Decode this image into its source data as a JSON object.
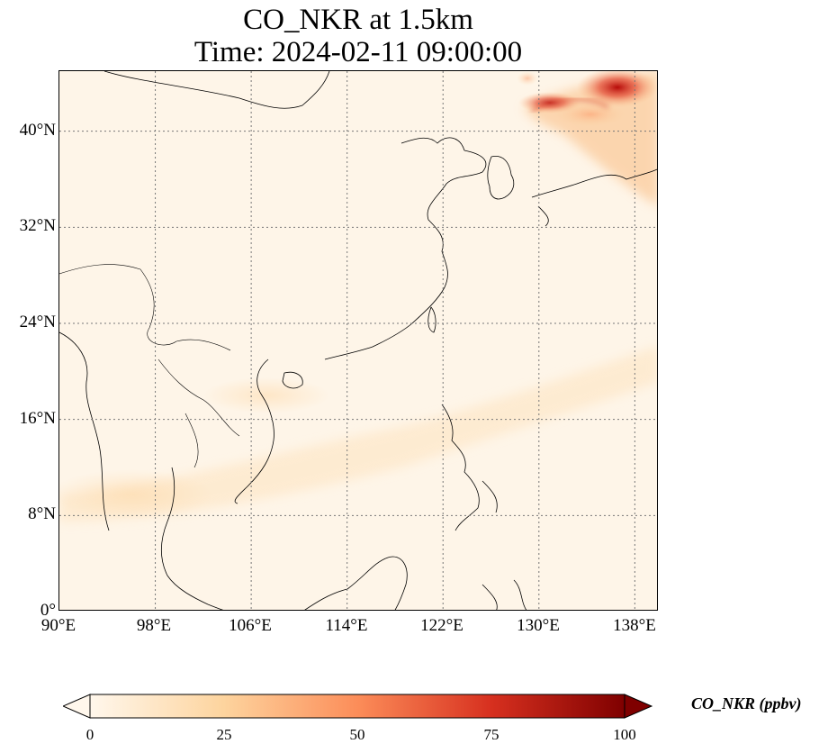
{
  "title": {
    "line1": "CO_NKR at 1.5km",
    "line2": "Time: 2024-02-11 09:00:00"
  },
  "map": {
    "variable": "CO_NKR",
    "level": "1.5km",
    "lon_range": [
      90,
      140
    ],
    "lat_range": [
      0,
      45
    ],
    "gridlines": "dotted",
    "y_ticks": [
      "0°",
      "8°N",
      "16°N",
      "24°N",
      "32°N",
      "40°N"
    ],
    "x_ticks": [
      "90°E",
      "98°E",
      "106°E",
      "114°E",
      "122°E",
      "130°E",
      "138°E"
    ]
  },
  "colorbar": {
    "label": "CO_NKR (ppbv)",
    "colormap": "OrRd",
    "range": [
      0,
      100
    ],
    "ticks": [
      "0",
      "25",
      "50",
      "75",
      "100"
    ],
    "extend": "both",
    "colors": [
      "#fff7ec",
      "#fdd49e",
      "#fc8d59",
      "#d7301f",
      "#7f0000"
    ]
  }
}
